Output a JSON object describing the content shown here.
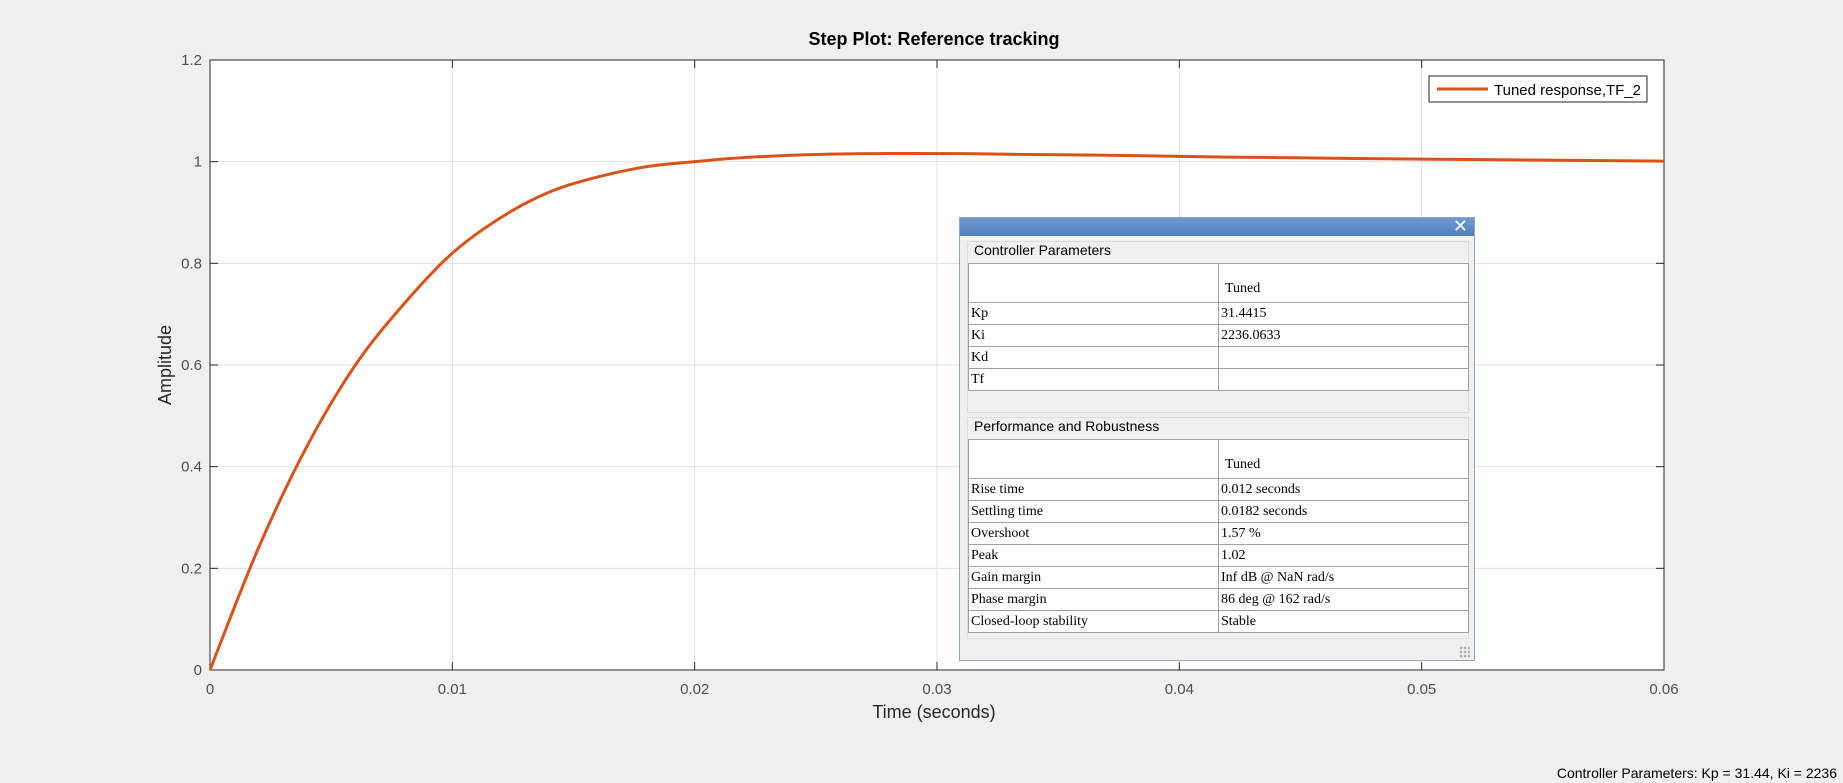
{
  "chart_data": {
    "type": "line",
    "title": "Step Plot: Reference tracking",
    "xlabel": "Time (seconds)",
    "ylabel": "Amplitude",
    "xlim": [
      0,
      0.06
    ],
    "ylim": [
      0,
      1.2
    ],
    "x_ticks": [
      0,
      0.01,
      0.02,
      0.03,
      0.04,
      0.05,
      0.06
    ],
    "x_tick_labels": [
      "0",
      "0.01",
      "0.02",
      "0.03",
      "0.04",
      "0.05",
      "0.06"
    ],
    "y_ticks": [
      0,
      0.2,
      0.4,
      0.6,
      0.8,
      1.0,
      1.2
    ],
    "y_tick_labels": [
      "0",
      "0.2",
      "0.4",
      "0.6",
      "0.8",
      "1",
      "1.2"
    ],
    "grid": true,
    "legend_position": "top-right",
    "series": [
      {
        "name": "Tuned response,TF_2",
        "color": "#d95319",
        "x": [
          0,
          0.002,
          0.004,
          0.006,
          0.008,
          0.01,
          0.012,
          0.014,
          0.016,
          0.018,
          0.02,
          0.022,
          0.025,
          0.028,
          0.031,
          0.034,
          0.038,
          0.042,
          0.046,
          0.05,
          0.055,
          0.06
        ],
        "y": [
          0,
          0.24,
          0.44,
          0.6,
          0.72,
          0.82,
          0.89,
          0.94,
          0.97,
          0.99,
          1.0,
          1.008,
          1.014,
          1.016,
          1.0157,
          1.014,
          1.012,
          1.009,
          1.007,
          1.005,
          1.003,
          1.001
        ]
      }
    ]
  },
  "params_window": {
    "close_glyph": "✕",
    "controller": {
      "group_label": "Controller Parameters",
      "column_header": "Tuned",
      "rows": [
        {
          "name": "Kp",
          "value": "31.4415"
        },
        {
          "name": "Ki",
          "value": "2236.0633"
        },
        {
          "name": "Kd",
          "value": ""
        },
        {
          "name": "Tf",
          "value": ""
        }
      ]
    },
    "performance": {
      "group_label": "Performance and Robustness",
      "column_header": "Tuned",
      "rows": [
        {
          "name": "Rise time",
          "value": "0.012 seconds"
        },
        {
          "name": "Settling time",
          "value": "0.0182 seconds"
        },
        {
          "name": "Overshoot",
          "value": "1.57 %"
        },
        {
          "name": "Peak",
          "value": "1.02"
        },
        {
          "name": "Gain margin",
          "value": "Inf dB @ NaN rad/s"
        },
        {
          "name": "Phase margin",
          "value": "86 deg @ 162 rad/s"
        },
        {
          "name": "Closed-loop stability",
          "value": "Stable"
        }
      ]
    }
  },
  "status_bar": {
    "text": "Controller Parameters: Kp = 31.44, Ki = 2236"
  }
}
